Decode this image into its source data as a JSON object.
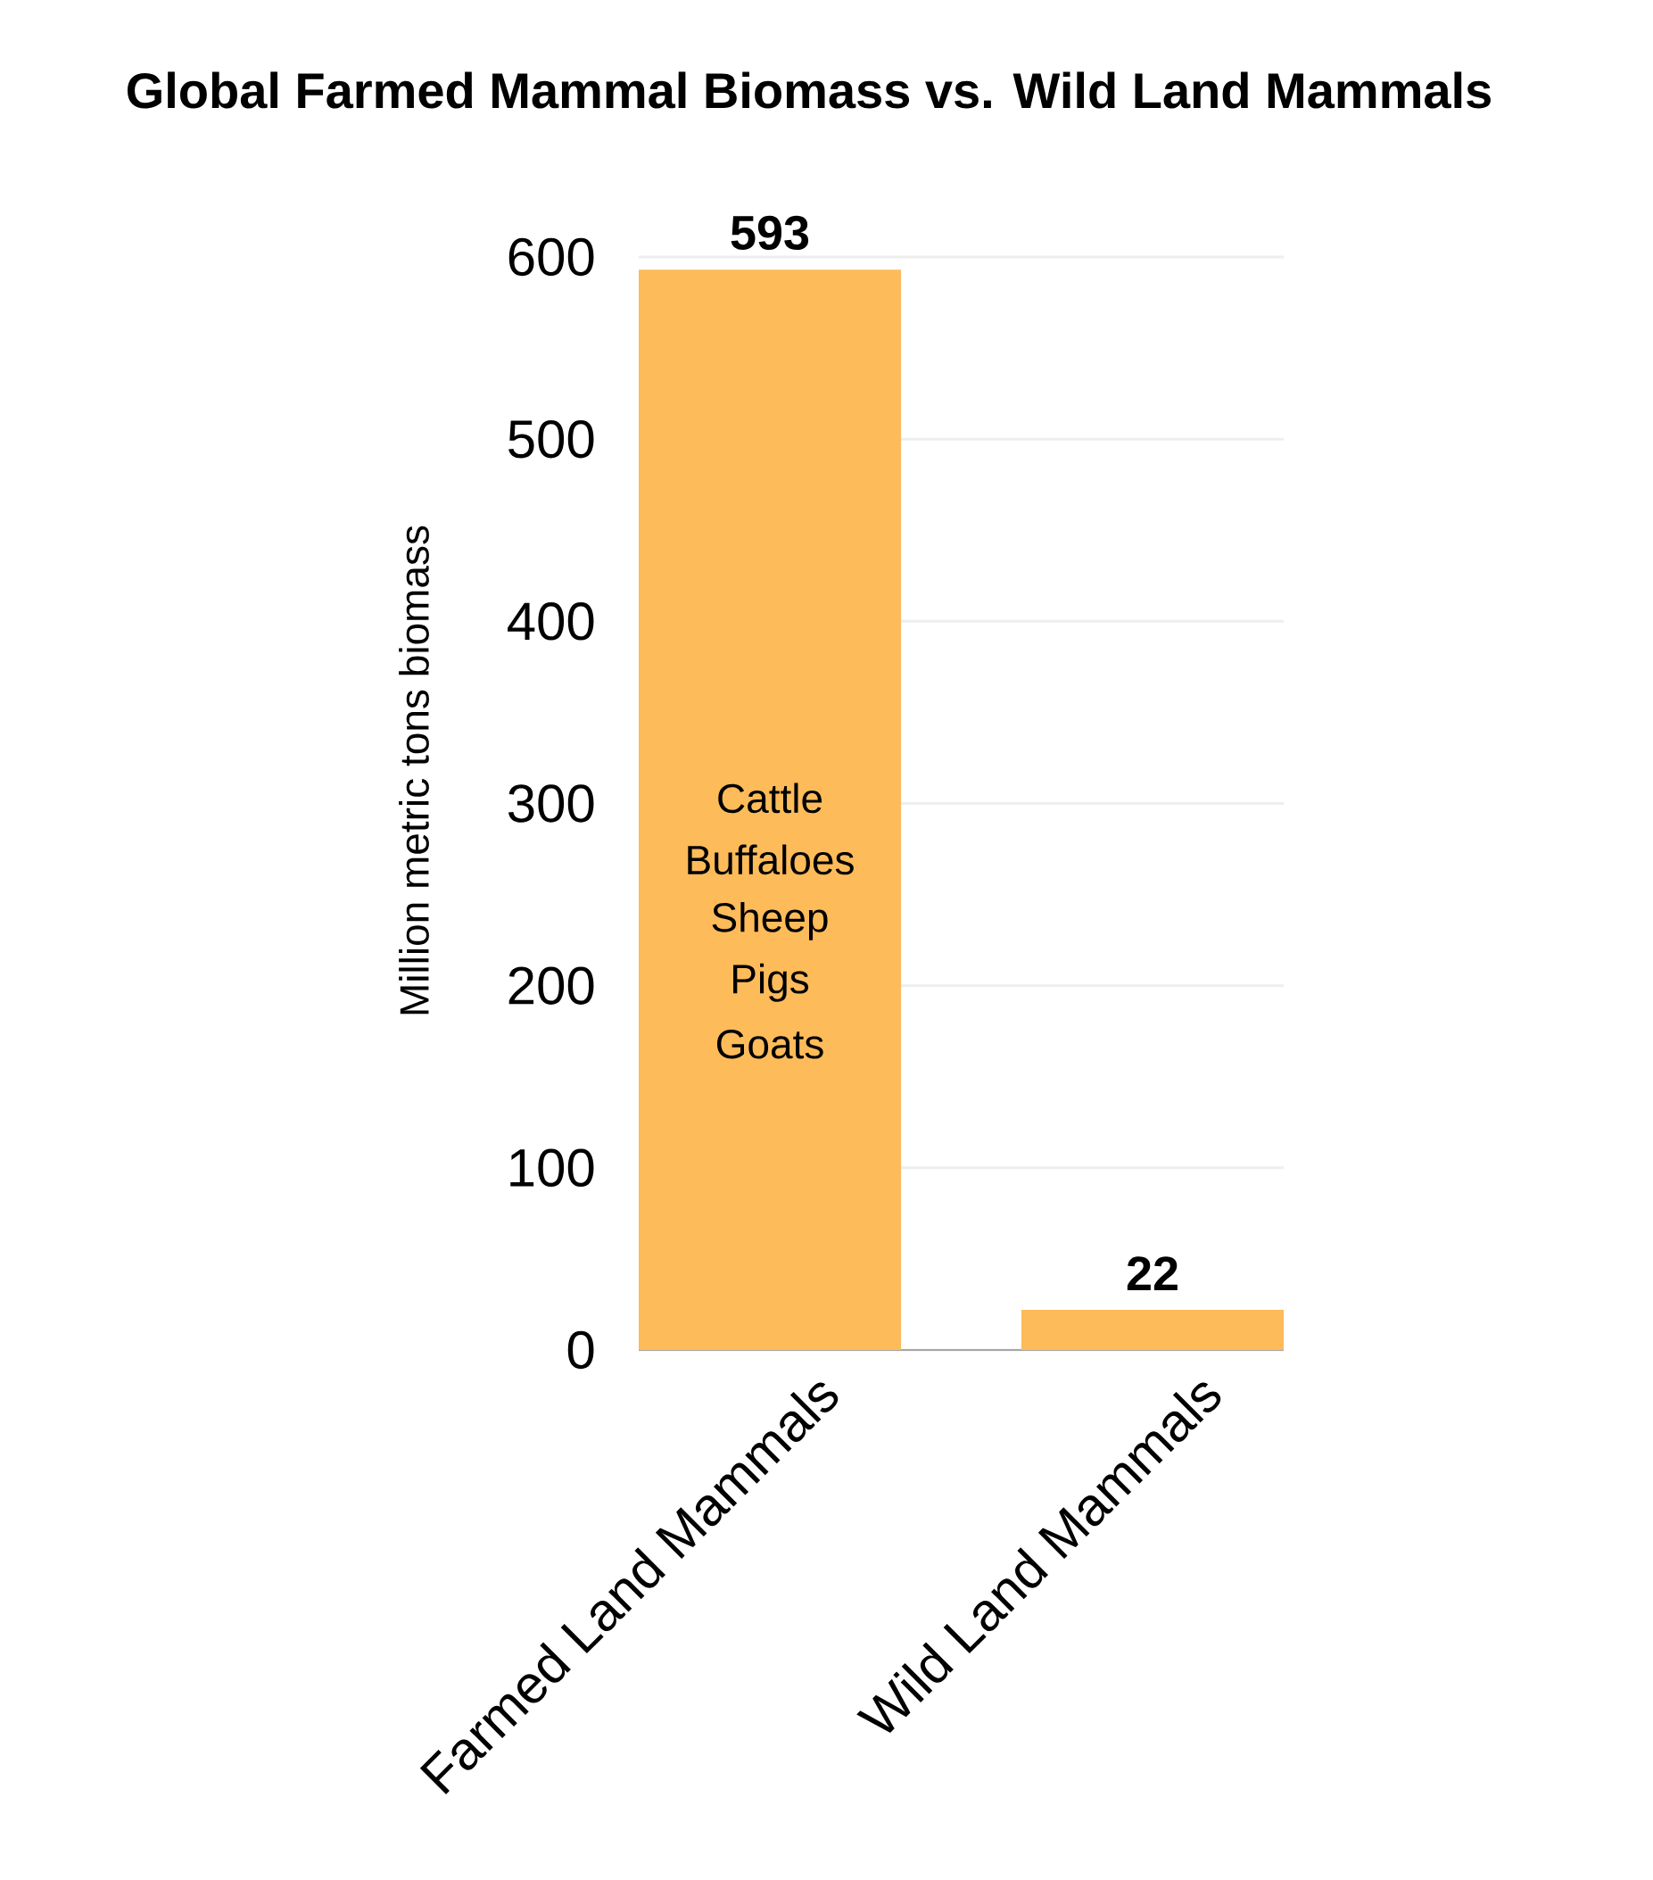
{
  "chart_data": {
    "type": "bar",
    "title": "Global Farmed Mammal Biomass vs. Wild Land Mammals",
    "ylabel": "Million metric tons biomass",
    "categories": [
      "Farmed Land Mammals",
      "Wild Land Mammals"
    ],
    "values": [
      593,
      22
    ],
    "color": "#fdbb5a",
    "ylim": [
      0,
      600
    ],
    "yticks": [
      0,
      100,
      200,
      300,
      400,
      500,
      600
    ],
    "grid": "y",
    "data_labels": true,
    "annotations": [
      "Cattle",
      "Buffaloes",
      "Sheep",
      "Pigs",
      "Goats"
    ]
  }
}
